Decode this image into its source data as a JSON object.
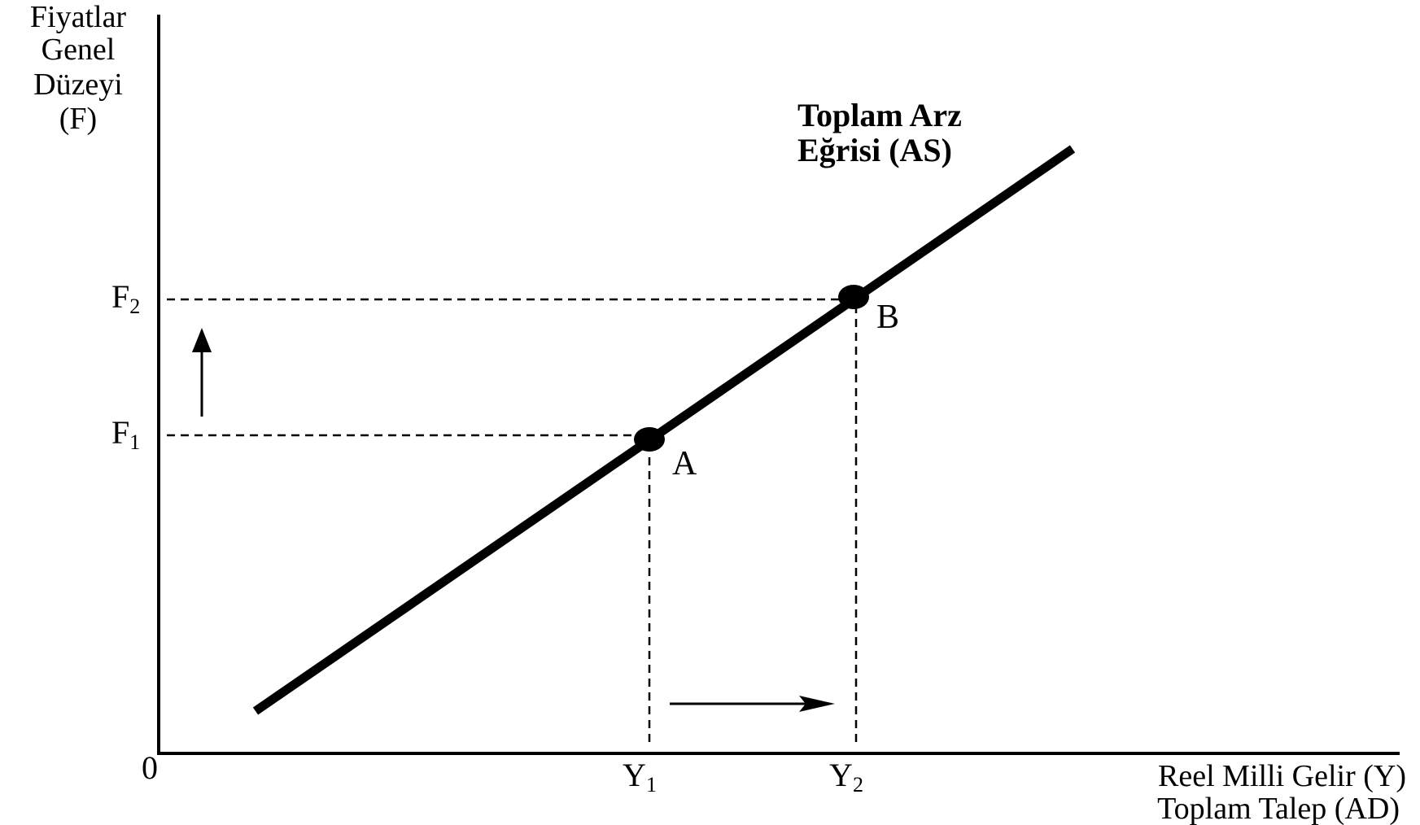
{
  "y_axis": {
    "title_lines": [
      "Fiyatlar",
      "Genel",
      "Düzeyi",
      "(F)"
    ]
  },
  "x_axis": {
    "title_lines": [
      "Reel Milli Gelir (Y)",
      "Toplam Talep (AD)"
    ]
  },
  "origin_label": "0",
  "curve": {
    "label_lines": [
      "Toplam Arz",
      "Eğrisi (AS)"
    ]
  },
  "points": {
    "a": "A",
    "b": "B"
  },
  "ticks": {
    "f1": {
      "letter": "F",
      "sub": "1"
    },
    "f2": {
      "letter": "F",
      "sub": "2"
    },
    "y1": {
      "letter": "Y",
      "sub": "1"
    },
    "y2": {
      "letter": "Y",
      "sub": "2"
    }
  },
  "colors": {
    "ink": "#000000",
    "background": "#ffffff"
  }
}
